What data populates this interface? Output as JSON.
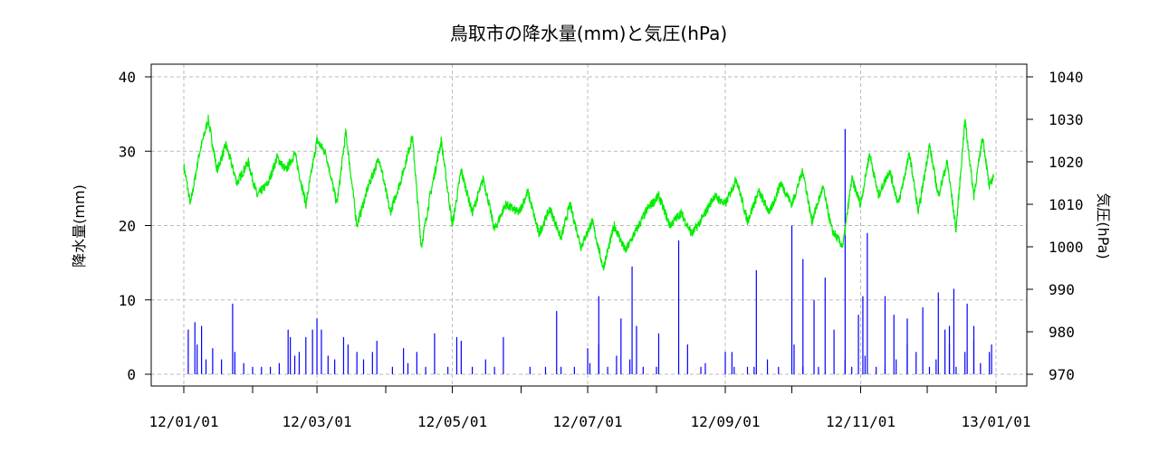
{
  "chart_data": {
    "type": "bar+line",
    "title": "鳥取市の降水量(mm)と気圧(hPa)",
    "ylabel_left": "降水量(mm)",
    "ylabel_right": "気圧(hPa)",
    "x_tick_labels": [
      "12/01/01",
      "12/03/01",
      "12/05/01",
      "12/07/01",
      "12/09/01",
      "12/11/01",
      "13/01/01"
    ],
    "x_range": [
      "2012-01-01",
      "2013-01-01"
    ],
    "ylim_left": [
      0,
      40
    ],
    "yticks_left": [
      0,
      10,
      20,
      30,
      40
    ],
    "ylim_right": [
      970,
      1040
    ],
    "yticks_right": [
      970,
      980,
      990,
      1000,
      1010,
      1020,
      1030,
      1040
    ],
    "grid": true,
    "colors": {
      "precipitation": "#0000ff",
      "pressure": "#00ee00",
      "grid": "#bbbbbb"
    },
    "precipitation_series": {
      "axis": "left",
      "style": "vertical bars",
      "points": [
        [
          "2012-01-03",
          6
        ],
        [
          "2012-01-06",
          7
        ],
        [
          "2012-01-07",
          4
        ],
        [
          "2012-01-09",
          6.5
        ],
        [
          "2012-01-11",
          2
        ],
        [
          "2012-01-14",
          3.5
        ],
        [
          "2012-01-18",
          2
        ],
        [
          "2012-01-23",
          9.5
        ],
        [
          "2012-01-24",
          3
        ],
        [
          "2012-01-28",
          1.5
        ],
        [
          "2012-02-01",
          1
        ],
        [
          "2012-02-05",
          1
        ],
        [
          "2012-02-09",
          1
        ],
        [
          "2012-02-13",
          1.5
        ],
        [
          "2012-02-17",
          6
        ],
        [
          "2012-02-18",
          5
        ],
        [
          "2012-02-20",
          2.5
        ],
        [
          "2012-02-22",
          3
        ],
        [
          "2012-02-25",
          5
        ],
        [
          "2012-02-28",
          6
        ],
        [
          "2012-03-01",
          7.5
        ],
        [
          "2012-03-03",
          6
        ],
        [
          "2012-03-06",
          2.5
        ],
        [
          "2012-03-09",
          2
        ],
        [
          "2012-03-13",
          5
        ],
        [
          "2012-03-15",
          4
        ],
        [
          "2012-03-19",
          3
        ],
        [
          "2012-03-22",
          2
        ],
        [
          "2012-03-26",
          3
        ],
        [
          "2012-03-28",
          4.5
        ],
        [
          "2012-04-04",
          1
        ],
        [
          "2012-04-09",
          3.5
        ],
        [
          "2012-04-11",
          1.5
        ],
        [
          "2012-04-15",
          3
        ],
        [
          "2012-04-19",
          1
        ],
        [
          "2012-04-23",
          5.5
        ],
        [
          "2012-04-29",
          1
        ],
        [
          "2012-05-03",
          5
        ],
        [
          "2012-05-05",
          4.5
        ],
        [
          "2012-05-10",
          1
        ],
        [
          "2012-05-16",
          2
        ],
        [
          "2012-05-20",
          1
        ],
        [
          "2012-05-24",
          5
        ],
        [
          "2012-06-05",
          1
        ],
        [
          "2012-06-12",
          1
        ],
        [
          "2012-06-19",
          1
        ],
        [
          "2012-06-25",
          1
        ],
        [
          "2012-07-02",
          1.5
        ],
        [
          "2012-07-06",
          4
        ],
        [
          "2012-07-10",
          1
        ],
        [
          "2012-07-14",
          2.5
        ],
        [
          "2012-07-20",
          2
        ],
        [
          "2012-07-26",
          1
        ],
        [
          "2012-08-01",
          1
        ],
        [
          "2012-08-15",
          4
        ],
        [
          "2012-08-21",
          1
        ],
        [
          "2012-09-01",
          3
        ],
        [
          "2012-09-05",
          1
        ],
        [
          "2012-09-14",
          1
        ],
        [
          "2012-09-25",
          1
        ],
        [
          "2012-10-06",
          1
        ],
        [
          "2012-10-13",
          1
        ],
        [
          "2012-10-20",
          6
        ],
        [
          "2012-10-25",
          2
        ],
        [
          "2012-10-28",
          1
        ],
        [
          "2012-11-03",
          2.5
        ],
        [
          "2012-11-08",
          1
        ],
        [
          "2012-11-12",
          1
        ],
        [
          "2012-11-17",
          2
        ],
        [
          "2012-11-22",
          4
        ],
        [
          "2012-11-26",
          3
        ],
        [
          "2012-12-02",
          1
        ],
        [
          "2012-12-05",
          2
        ],
        [
          "2012-12-09",
          6
        ],
        [
          "2012-12-11",
          4
        ],
        [
          "2012-12-14",
          1
        ],
        [
          "2012-12-18",
          3
        ],
        [
          "2012-12-22",
          4.5
        ],
        [
          "2012-12-25",
          1.5
        ],
        [
          "2012-12-29",
          3
        ]
      ],
      "peaks": [
        [
          "2012-06-17",
          8.5
        ],
        [
          "2012-07-06",
          10.5
        ],
        [
          "2012-07-01",
          3.5
        ],
        [
          "2012-07-16",
          7.5
        ],
        [
          "2012-07-21",
          14.5
        ],
        [
          "2012-07-23",
          6.5
        ],
        [
          "2012-08-02",
          5.5
        ],
        [
          "2012-08-11",
          18
        ],
        [
          "2012-08-23",
          1.5
        ],
        [
          "2012-09-04",
          3
        ],
        [
          "2012-09-11",
          1
        ],
        [
          "2012-09-15",
          14
        ],
        [
          "2012-09-20",
          2
        ],
        [
          "2012-10-01",
          20
        ],
        [
          "2012-10-02",
          4
        ],
        [
          "2012-10-06",
          15.5
        ],
        [
          "2012-10-11",
          10
        ],
        [
          "2012-10-16",
          13
        ],
        [
          "2012-10-25",
          33
        ],
        [
          "2012-10-31",
          8
        ],
        [
          "2012-11-02",
          10.5
        ],
        [
          "2012-11-04",
          19
        ],
        [
          "2012-11-12",
          10.5
        ],
        [
          "2012-11-16",
          8
        ],
        [
          "2012-11-22",
          7.5
        ],
        [
          "2012-11-29",
          9
        ],
        [
          "2012-12-06",
          11
        ],
        [
          "2012-12-11",
          6.5
        ],
        [
          "2012-12-13",
          11.5
        ],
        [
          "2012-12-19",
          9.5
        ],
        [
          "2012-12-22",
          6.5
        ],
        [
          "2012-12-30",
          4
        ]
      ]
    },
    "pressure_series": {
      "axis": "right",
      "style": "line",
      "points": [
        [
          "2012-01-01",
          1019
        ],
        [
          "2012-01-04",
          1010
        ],
        [
          "2012-01-08",
          1022
        ],
        [
          "2012-01-12",
          1030
        ],
        [
          "2012-01-16",
          1018
        ],
        [
          "2012-01-20",
          1024
        ],
        [
          "2012-01-25",
          1015
        ],
        [
          "2012-01-30",
          1020
        ],
        [
          "2012-02-03",
          1012
        ],
        [
          "2012-02-08",
          1015
        ],
        [
          "2012-02-12",
          1021
        ],
        [
          "2012-02-16",
          1018
        ],
        [
          "2012-02-20",
          1022
        ],
        [
          "2012-02-25",
          1010
        ],
        [
          "2012-03-01",
          1025
        ],
        [
          "2012-03-05",
          1022
        ],
        [
          "2012-03-10",
          1010
        ],
        [
          "2012-03-14",
          1027
        ],
        [
          "2012-03-19",
          1005
        ],
        [
          "2012-03-24",
          1014
        ],
        [
          "2012-03-29",
          1021
        ],
        [
          "2012-04-03",
          1008
        ],
        [
          "2012-04-08",
          1016
        ],
        [
          "2012-04-13",
          1026
        ],
        [
          "2012-04-17",
          1000
        ],
        [
          "2012-04-21",
          1012
        ],
        [
          "2012-04-26",
          1025
        ],
        [
          "2012-05-01",
          1005
        ],
        [
          "2012-05-05",
          1018
        ],
        [
          "2012-05-10",
          1008
        ],
        [
          "2012-05-15",
          1016
        ],
        [
          "2012-05-20",
          1004
        ],
        [
          "2012-05-25",
          1010
        ],
        [
          "2012-05-31",
          1008
        ],
        [
          "2012-06-04",
          1013
        ],
        [
          "2012-06-09",
          1003
        ],
        [
          "2012-06-14",
          1009
        ],
        [
          "2012-06-19",
          1002
        ],
        [
          "2012-06-23",
          1010
        ],
        [
          "2012-06-28",
          1000
        ],
        [
          "2012-07-03",
          1006
        ],
        [
          "2012-07-08",
          995
        ],
        [
          "2012-07-13",
          1005
        ],
        [
          "2012-07-18",
          999
        ],
        [
          "2012-07-23",
          1004
        ],
        [
          "2012-07-28",
          1009
        ],
        [
          "2012-08-02",
          1012
        ],
        [
          "2012-08-07",
          1005
        ],
        [
          "2012-08-12",
          1008
        ],
        [
          "2012-08-17",
          1003
        ],
        [
          "2012-08-22",
          1007
        ],
        [
          "2012-08-27",
          1012
        ],
        [
          "2012-09-01",
          1010
        ],
        [
          "2012-09-06",
          1016
        ],
        [
          "2012-09-11",
          1006
        ],
        [
          "2012-09-16",
          1013
        ],
        [
          "2012-09-21",
          1008
        ],
        [
          "2012-09-26",
          1015
        ],
        [
          "2012-10-01",
          1010
        ],
        [
          "2012-10-06",
          1018
        ],
        [
          "2012-10-10",
          1006
        ],
        [
          "2012-10-15",
          1014
        ],
        [
          "2012-10-19",
          1004
        ],
        [
          "2012-10-24",
          1000
        ],
        [
          "2012-10-28",
          1016
        ],
        [
          "2012-11-01",
          1010
        ],
        [
          "2012-11-05",
          1022
        ],
        [
          "2012-11-09",
          1012
        ],
        [
          "2012-11-14",
          1018
        ],
        [
          "2012-11-18",
          1010
        ],
        [
          "2012-11-23",
          1022
        ],
        [
          "2012-11-27",
          1008
        ],
        [
          "2012-12-02",
          1024
        ],
        [
          "2012-12-06",
          1012
        ],
        [
          "2012-12-10",
          1020
        ],
        [
          "2012-12-14",
          1004
        ],
        [
          "2012-12-18",
          1030
        ],
        [
          "2012-12-22",
          1012
        ],
        [
          "2012-12-26",
          1026
        ],
        [
          "2012-12-29",
          1014
        ],
        [
          "2012-12-31",
          1017
        ]
      ]
    }
  }
}
